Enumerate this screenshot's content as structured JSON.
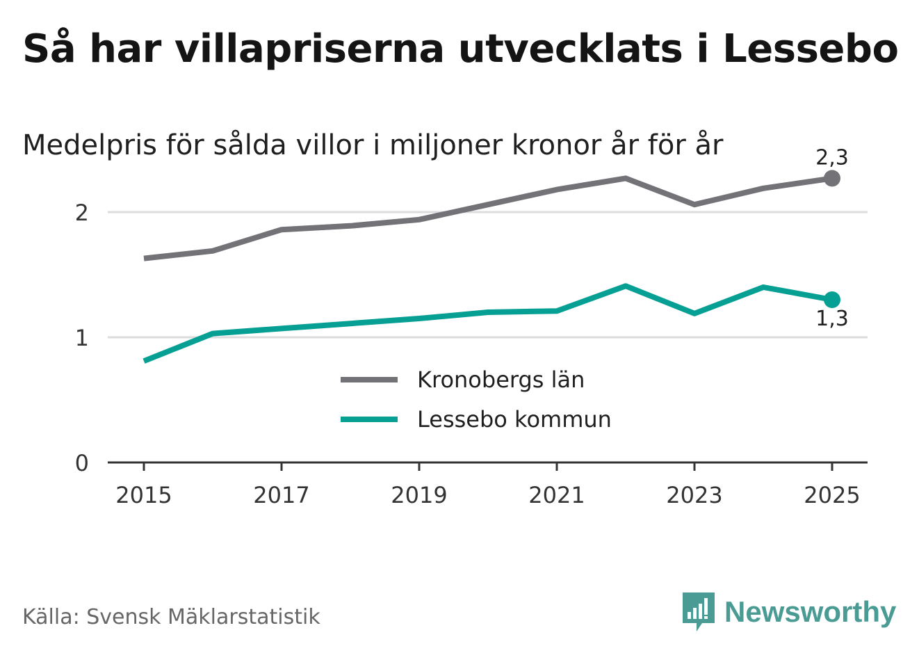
{
  "header": {
    "title": "Så har villapriserna utvecklats i Lessebo",
    "subtitle": "Medelpris för sålda villor i miljoner kronor år för år"
  },
  "legend": [
    {
      "label": "Kronobergs län",
      "color": "#727277"
    },
    {
      "label": "Lessebo kommun",
      "color": "#069f94"
    }
  ],
  "footer": {
    "source": "Källa: Svensk Mäklarstatistik",
    "brand": "Newsworthy",
    "brand_color": "#4a9b94"
  },
  "chart_data": {
    "type": "line",
    "title": "Så har villapriserna utvecklats i Lessebo",
    "subtitle": "Medelpris för sålda villor i miljoner kronor år för år",
    "xlabel": "",
    "ylabel": "",
    "x": [
      2015,
      2016,
      2017,
      2018,
      2019,
      2020,
      2021,
      2022,
      2023,
      2024,
      2025
    ],
    "x_ticks": [
      "2015",
      "2017",
      "2019",
      "2021",
      "2023",
      "2025"
    ],
    "y_ticks": [
      "0",
      "1",
      "2"
    ],
    "ylim": [
      0,
      2.4
    ],
    "grid": true,
    "legend_position": "center",
    "series": [
      {
        "name": "Kronobergs län",
        "color": "#727277",
        "values": [
          1.63,
          1.69,
          1.86,
          1.89,
          1.94,
          2.06,
          2.18,
          2.27,
          2.06,
          2.19,
          2.27
        ],
        "end_label": "2,3"
      },
      {
        "name": "Lessebo kommun",
        "color": "#069f94",
        "values": [
          0.81,
          1.03,
          1.07,
          1.11,
          1.15,
          1.2,
          1.21,
          1.41,
          1.19,
          1.4,
          1.3
        ],
        "end_label": "1,3"
      }
    ]
  }
}
